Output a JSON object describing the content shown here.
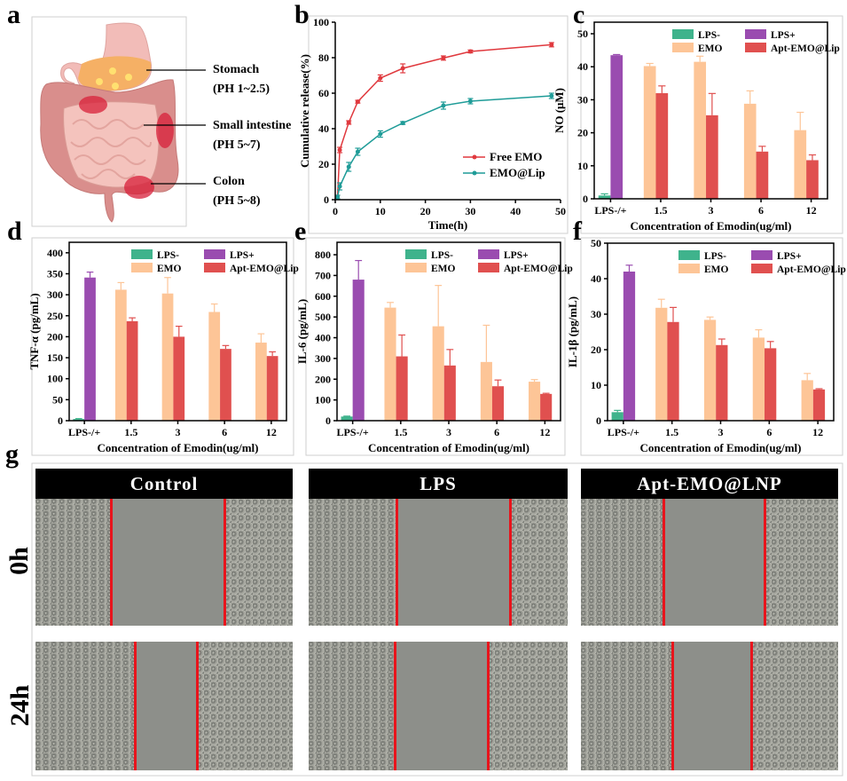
{
  "panel_letters": [
    "a",
    "b",
    "c",
    "d",
    "e",
    "f",
    "g"
  ],
  "panel_a": {
    "labels": [
      {
        "name": "Stomach",
        "ph": "(PH 1~2.5)"
      },
      {
        "name": "Small intestine",
        "ph": "(PH 5~7)"
      },
      {
        "name": "Colon",
        "ph": "(PH 5~8)"
      }
    ]
  },
  "panel_g": {
    "columns": [
      "Control",
      "LPS",
      "Apt-EMO@LNP"
    ],
    "rows": [
      "0h",
      "24h"
    ],
    "line_color": "#e8141c"
  },
  "colors": {
    "LPS-": "#3fb38c",
    "LPS+": "#9a4cb0",
    "EMO": "#fdc597",
    "Apt-EMO@Lip": "#e0504f",
    "Free EMO": "#e0393e",
    "EMO@Lip": "#1f9c98"
  },
  "chart_data": [
    {
      "panel": "b",
      "type": "line",
      "xlabel": "Time(h)",
      "ylabel": "Cumulative release(%)",
      "xlim": [
        0,
        50
      ],
      "ylim": [
        0,
        100
      ],
      "xticks": [
        0,
        10,
        20,
        30,
        40,
        50
      ],
      "yticks": [
        0,
        20,
        40,
        60,
        80,
        100
      ],
      "legend": "bottom-right",
      "grid": false,
      "x": [
        0.5,
        1,
        3,
        5,
        10,
        15,
        24,
        30,
        48
      ],
      "series": [
        {
          "name": "Free EMO",
          "values": [
            1.5,
            28,
            43.5,
            55.2,
            68.5,
            74,
            79.8,
            83.5,
            87.3
          ],
          "errors": [
            1,
            1.5,
            1,
            0.8,
            1.8,
            2.5,
            1.2,
            0.8,
            1.2
          ]
        },
        {
          "name": "EMO@Lip",
          "values": [
            1.5,
            7.5,
            18.5,
            27,
            37,
            43.2,
            53,
            55.5,
            58.5
          ],
          "errors": [
            1,
            2,
            2.5,
            2,
            1.8,
            0.8,
            2,
            1.5,
            1.5
          ]
        }
      ]
    },
    {
      "panel": "c",
      "type": "bar",
      "xlabel": "Concentration of Emodin(ug/ml)",
      "ylabel": "NO (μM)",
      "ylim": [
        0,
        53.5
      ],
      "yticks": [
        0,
        10,
        20,
        30,
        40,
        50
      ],
      "legend": "top-right",
      "categories": [
        "LPS-/+",
        "1.5",
        "3",
        "6",
        "12"
      ],
      "series": [
        {
          "name": "LPS-",
          "values": [
            1,
            null,
            null,
            null,
            null
          ],
          "errors": [
            0.5,
            null,
            null,
            null,
            null
          ]
        },
        {
          "name": "LPS+",
          "values": [
            43.5,
            null,
            null,
            null,
            null
          ],
          "errors": [
            0.2,
            null,
            null,
            null,
            null
          ]
        },
        {
          "name": "EMO",
          "values": [
            null,
            40.2,
            41.5,
            28.8,
            20.8
          ],
          "errors": [
            null,
            0.8,
            1.7,
            3.9,
            5.4
          ]
        },
        {
          "name": "Apt-EMO@Lip",
          "values": [
            null,
            32,
            25.3,
            14.3,
            11.7
          ],
          "errors": [
            null,
            2.2,
            6.6,
            1.6,
            1.6
          ]
        }
      ]
    },
    {
      "panel": "d",
      "type": "bar",
      "xlabel": "Concentration of Emodin(ug/ml)",
      "ylabel": "TNF-α (pg/mL)",
      "ylim": [
        0,
        425
      ],
      "yticks": [
        0,
        50,
        100,
        150,
        200,
        250,
        300,
        350,
        400
      ],
      "legend": "top-right",
      "categories": [
        "LPS-/+",
        "1.5",
        "3",
        "6",
        "12"
      ],
      "series": [
        {
          "name": "LPS-",
          "values": [
            4,
            null,
            null,
            null,
            null
          ],
          "errors": [
            1,
            null,
            null,
            null,
            null
          ]
        },
        {
          "name": "LPS+",
          "values": [
            341,
            null,
            null,
            null,
            null
          ],
          "errors": [
            13,
            null,
            null,
            null,
            null
          ]
        },
        {
          "name": "EMO",
          "values": [
            null,
            312,
            303,
            259,
            186
          ],
          "errors": [
            null,
            17,
            38,
            19,
            21
          ]
        },
        {
          "name": "Apt-EMO@Lip",
          "values": [
            null,
            237,
            200,
            171,
            154
          ],
          "errors": [
            null,
            8,
            25,
            8,
            10
          ]
        }
      ]
    },
    {
      "panel": "e",
      "type": "bar",
      "xlabel": "Concentration of Emodin(ug/ml)",
      "ylabel": "IL-6 (pg/mL)",
      "ylim": [
        0,
        860
      ],
      "yticks": [
        0,
        100,
        200,
        300,
        400,
        500,
        600,
        700,
        800
      ],
      "legend": "top-right",
      "categories": [
        "LPS-/+",
        "1.5",
        "3",
        "6",
        "12"
      ],
      "series": [
        {
          "name": "LPS-",
          "values": [
            20,
            null,
            null,
            null,
            null
          ],
          "errors": [
            2,
            null,
            null,
            null,
            null
          ]
        },
        {
          "name": "LPS+",
          "values": [
            680,
            null,
            null,
            null,
            null
          ],
          "errors": [
            92,
            null,
            null,
            null,
            null
          ]
        },
        {
          "name": "EMO",
          "values": [
            null,
            545,
            455,
            283,
            188
          ],
          "errors": [
            null,
            25,
            197,
            177,
            10
          ]
        },
        {
          "name": "Apt-EMO@Lip",
          "values": [
            null,
            310,
            266,
            166,
            129
          ],
          "errors": [
            null,
            103,
            77,
            30,
            3
          ]
        }
      ]
    },
    {
      "panel": "f",
      "type": "bar",
      "xlabel": "Concentration of Emodin(ug/ml)",
      "ylabel": "IL-1β (pg/mL)",
      "ylim": [
        0,
        50
      ],
      "yticks": [
        0,
        10,
        20,
        30,
        40,
        50
      ],
      "legend": "top-right",
      "categories": [
        "LPS-/+",
        "1.5",
        "3",
        "6",
        "12"
      ],
      "series": [
        {
          "name": "LPS-",
          "values": [
            2.4,
            null,
            null,
            null,
            null
          ],
          "errors": [
            0.5,
            null,
            null,
            null,
            null
          ]
        },
        {
          "name": "LPS+",
          "values": [
            42,
            null,
            null,
            null,
            null
          ],
          "errors": [
            1.8,
            null,
            null,
            null,
            null
          ]
        },
        {
          "name": "EMO",
          "values": [
            null,
            31.8,
            28.4,
            23.4,
            11.4
          ],
          "errors": [
            null,
            2.4,
            0.8,
            2.2,
            1.9
          ]
        },
        {
          "name": "Apt-EMO@Lip",
          "values": [
            null,
            27.8,
            21.3,
            20.4,
            8.8
          ],
          "errors": [
            null,
            4.1,
            1.7,
            1.9,
            0.2
          ]
        }
      ]
    }
  ]
}
